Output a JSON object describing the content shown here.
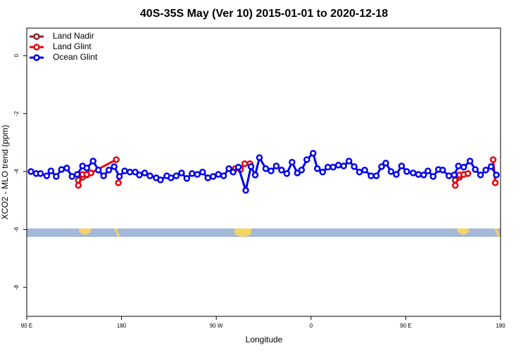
{
  "chart_data": {
    "type": "line",
    "title": "40S-35S May (Ver 10)   2015-01-01 to 2020-12-18",
    "x_label": "Longitude",
    "y_label": "XCO2 - MLO trend (ppm)",
    "xlim": [
      90,
      540
    ],
    "xticks": [
      {
        "value": 90,
        "label": "90 E"
      },
      {
        "value": 180,
        "label": "180"
      },
      {
        "value": 270,
        "label": "90 W"
      },
      {
        "value": 360,
        "label": "0"
      },
      {
        "value": 450,
        "label": "90 E"
      },
      {
        "value": 540,
        "label": "180"
      }
    ],
    "ylim": [
      -9,
      0.95
    ],
    "yticks": [
      0,
      -2,
      -4,
      -6,
      -8
    ],
    "grid": false,
    "legend": "top-left",
    "series": [
      {
        "name": "Land Nadir",
        "color": "#8b2323",
        "x": [
          139,
          143,
          147,
          400,
          497,
          501
        ],
        "values": [
          -4.3,
          -4.2,
          -4.12,
          null,
          -4.3,
          -4.2
        ]
      },
      {
        "name": "Land Glint",
        "color": "#e8000b",
        "x": [
          139,
          143,
          147,
          151,
          175,
          176,
          177,
          230,
          288,
          293,
          297,
          302,
          400,
          497,
          501,
          505,
          509,
          520,
          533,
          535
        ],
        "values": [
          -4.48,
          -4.1,
          -4.1,
          -4.05,
          -3.59,
          null,
          -4.39,
          null,
          -3.9,
          -3.93,
          -3.73,
          -3.73,
          null,
          -4.48,
          -4.12,
          -4.1,
          -4.07,
          null,
          -3.59,
          -4.39
        ]
      },
      {
        "name": "Ocean Glint",
        "color": "#0000ee",
        "x": [
          94,
          99,
          103,
          109,
          113,
          118,
          123,
          128,
          133,
          138,
          143,
          147,
          153,
          158,
          163,
          168,
          173,
          178,
          183,
          188,
          193,
          197,
          202,
          207,
          213,
          217,
          223,
          227,
          232,
          237,
          242,
          247,
          252,
          257,
          262,
          267,
          272,
          277,
          282,
          286,
          291,
          298,
          303,
          307,
          311,
          317,
          322,
          327,
          332,
          337,
          342,
          347,
          351,
          356,
          362,
          366,
          371,
          376,
          381,
          386,
          391,
          396,
          401,
          406,
          411,
          417,
          422,
          427,
          431,
          436,
          441,
          446,
          451,
          457,
          462,
          467,
          471,
          476,
          481,
          485,
          491,
          496,
          500,
          505,
          511,
          516,
          521,
          526,
          531,
          536
        ],
        "values": [
          -4.0,
          -4.07,
          -4.07,
          -4.15,
          -3.98,
          -4.17,
          -3.93,
          -3.88,
          -4.17,
          -4.1,
          -3.81,
          -3.88,
          -3.64,
          -3.95,
          -4.15,
          -3.95,
          -3.83,
          -4.17,
          -3.98,
          -4.02,
          -4.02,
          -4.12,
          -4.05,
          -4.15,
          -4.22,
          -4.29,
          -4.15,
          -4.22,
          -4.15,
          -4.05,
          -4.24,
          -4.07,
          -4.1,
          -4.02,
          -4.22,
          -4.17,
          -4.1,
          -4.15,
          -3.9,
          -4.02,
          -3.85,
          -4.65,
          -3.83,
          -4.12,
          -3.52,
          -3.9,
          -3.98,
          -3.81,
          -3.95,
          -4.07,
          -3.68,
          -4.05,
          -3.95,
          -3.59,
          -3.37,
          -3.9,
          -4.02,
          -3.85,
          -3.85,
          -3.78,
          -3.81,
          -3.64,
          -3.83,
          -4.02,
          -3.95,
          -4.15,
          -4.15,
          -3.83,
          -3.71,
          -4.0,
          -4.1,
          -3.81,
          -4.0,
          -4.05,
          -4.1,
          -4.12,
          -3.98,
          -4.17,
          -3.93,
          -3.95,
          -4.15,
          -4.12,
          -3.81,
          -3.85,
          -3.64,
          -3.93,
          -4.12,
          -3.95,
          -3.83,
          -4.12
        ]
      }
    ]
  }
}
